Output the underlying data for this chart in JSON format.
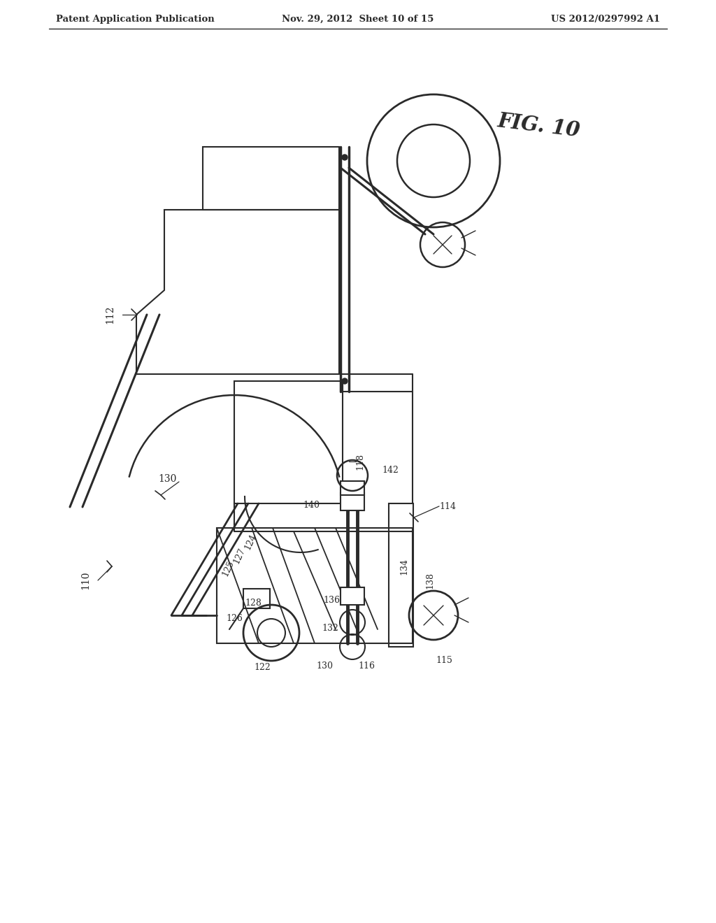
{
  "header_left": "Patent Application Publication",
  "header_mid": "Nov. 29, 2012  Sheet 10 of 15",
  "header_right": "US 2012/0297992 A1",
  "bg": "#ffffff",
  "lc": "#2a2a2a",
  "fig_label": "FIG. 10"
}
